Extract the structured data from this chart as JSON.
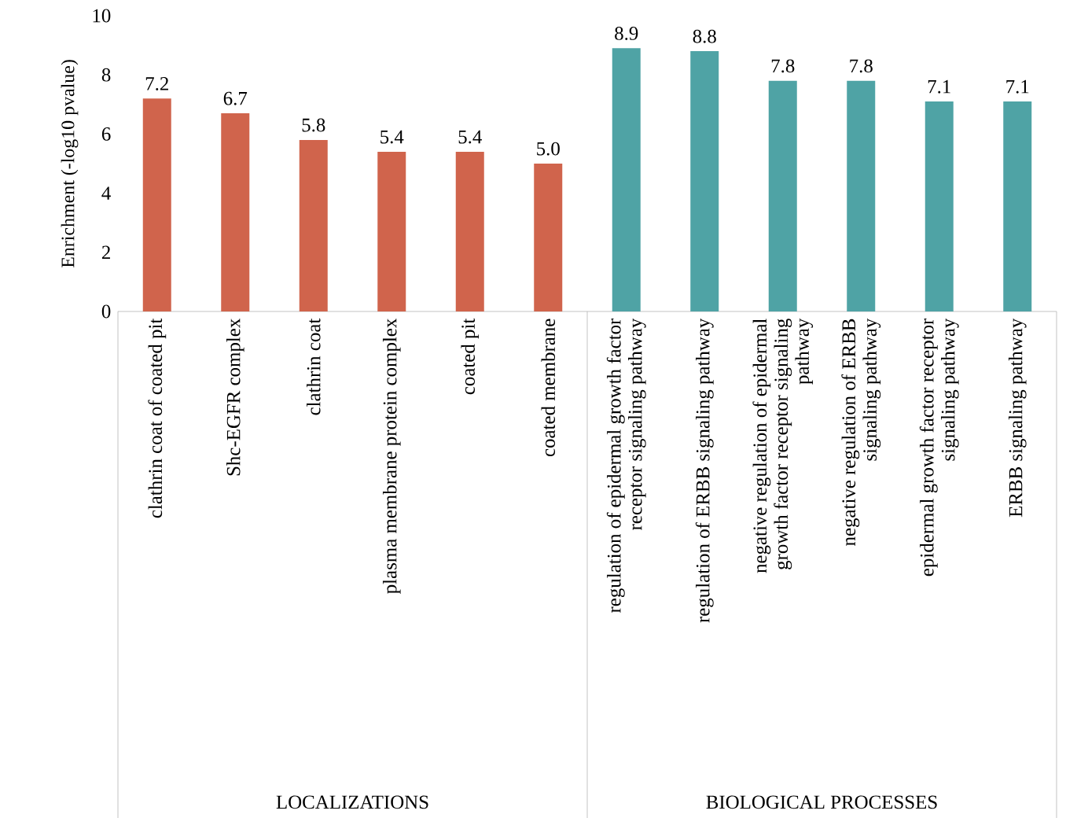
{
  "chart_data": {
    "type": "bar",
    "ylabel": "Enrichment (-log10 pvalue)",
    "categories": [
      "clathrin coat of coated pit",
      "Shc-EGFR complex",
      "clathrin coat",
      "plasma membrane protein complex",
      "coated pit",
      "coated membrane",
      "regulation of epidermal growth factor receptor signaling pathway",
      "regulation of ERBB signaling pathway",
      "negative regulation of epidermal growth factor receptor signaling pathway",
      "negative regulation of ERBB signaling pathway",
      "epidermal growth factor receptor signaling pathway",
      "ERBB signaling pathway"
    ],
    "values": [
      7.2,
      6.7,
      5.8,
      5.4,
      5.4,
      5.0,
      8.9,
      8.8,
      7.8,
      7.8,
      7.1,
      7.1
    ],
    "value_labels": [
      "7.2",
      "6.7",
      "5.8",
      "5.4",
      "5.4",
      "5.0",
      "8.9",
      "8.8",
      "7.8",
      "7.8",
      "7.1",
      "7.1"
    ],
    "colors": [
      "#d0644c",
      "#d0644c",
      "#d0644c",
      "#d0644c",
      "#d0644c",
      "#d0644c",
      "#4fa3a5",
      "#4fa3a5",
      "#4fa3a5",
      "#4fa3a5",
      "#4fa3a5",
      "#4fa3a5"
    ],
    "ylim": [
      0,
      10
    ],
    "yticks": [
      0,
      2,
      4,
      6,
      8,
      10
    ],
    "grid": false,
    "annotations": [
      "LOCALIZATIONS",
      "BIOLOGICAL PROCESSES"
    ]
  }
}
